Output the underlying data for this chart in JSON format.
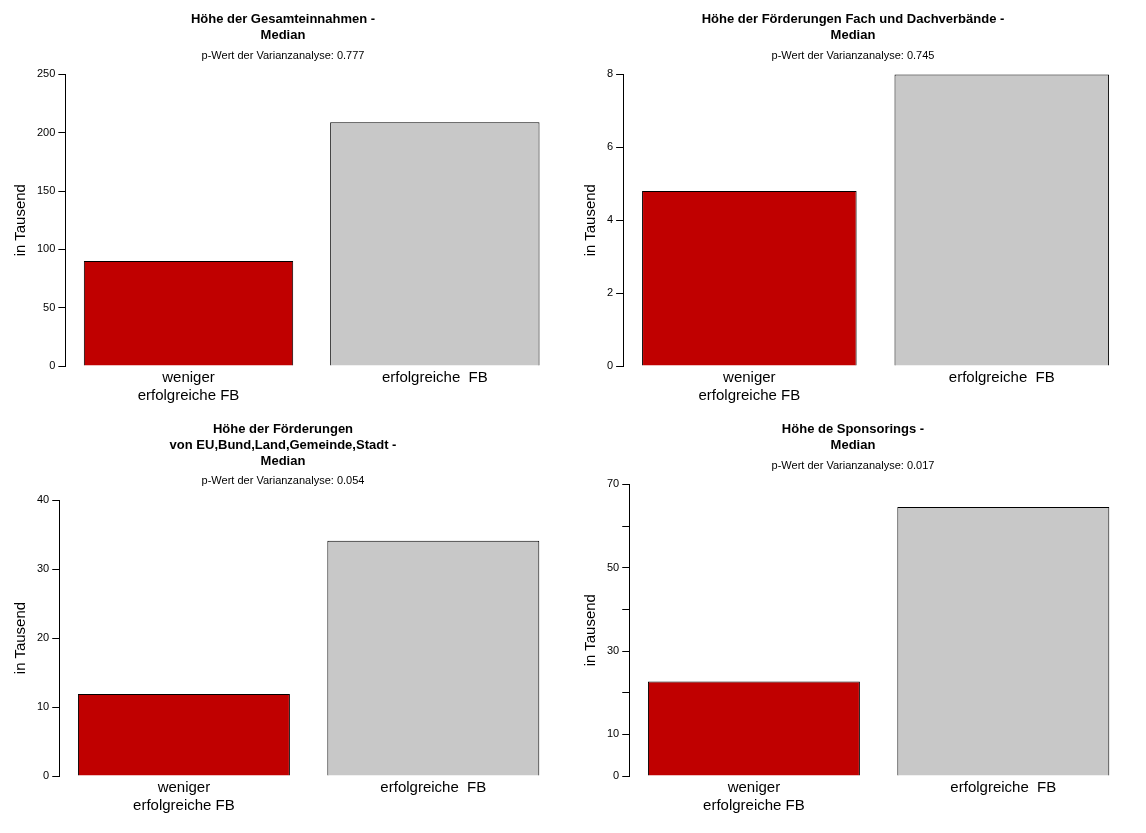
{
  "chart_data": [
    {
      "type": "bar",
      "title": "Höhe der Gesamteinnahmen -\nMedian",
      "subtitle": "p-Wert der Varianzanalyse: 0.777",
      "ylabel": "in Tausend",
      "categories": [
        "weniger\nerfolgreiche FB",
        "erfolgreiche  FB"
      ],
      "values": [
        90,
        209
      ],
      "colors": [
        "#c00000",
        "#c8c8c8"
      ],
      "ylim": [
        0,
        250
      ],
      "yticks": [
        0,
        50,
        100,
        150,
        200,
        250
      ],
      "grid": false,
      "legend": false
    },
    {
      "type": "bar",
      "title": "Höhe der Förderungen Fach und Dachverbände -\nMedian",
      "subtitle": "p-Wert der Varianzanalyse: 0.745",
      "ylabel": "in Tausend",
      "categories": [
        "weniger\nerfolgreiche FB",
        "erfolgreiche  FB"
      ],
      "values": [
        4.8,
        8.0
      ],
      "colors": [
        "#c00000",
        "#c8c8c8"
      ],
      "ylim": [
        0,
        8
      ],
      "yticks": [
        0,
        2,
        4,
        6,
        8
      ],
      "grid": false,
      "legend": false
    },
    {
      "type": "bar",
      "title": "Höhe der Förderungen\nvon EU,Bund,Land,Gemeinde,Stadt -\nMedian",
      "subtitle": "p-Wert der Varianzanalyse: 0.054",
      "ylabel": "in Tausend",
      "categories": [
        "weniger\nerfolgreiche FB",
        "erfolgreiche  FB"
      ],
      "values": [
        11.9,
        34.1
      ],
      "colors": [
        "#c00000",
        "#c8c8c8"
      ],
      "ylim": [
        0,
        40
      ],
      "yticks": [
        0,
        10,
        20,
        30,
        40
      ],
      "grid": false,
      "legend": false
    },
    {
      "type": "bar",
      "title": "Höhe de Sponsorings -\nMedian",
      "subtitle": "p-Wert der Varianzanalyse: 0.017",
      "ylabel": "in Tausend",
      "categories": [
        "weniger\nerfolgreiche FB",
        "erfolgreiche  FB"
      ],
      "values": [
        22.7,
        64.6
      ],
      "colors": [
        "#c00000",
        "#c8c8c8"
      ],
      "ylim": [
        0,
        70
      ],
      "yticks": [
        0,
        10,
        {
          "value": 20,
          "label": null
        },
        30,
        {
          "value": 40,
          "label": null
        },
        50,
        {
          "value": 60,
          "label": null
        },
        70
      ],
      "grid": false,
      "legend": false
    }
  ]
}
